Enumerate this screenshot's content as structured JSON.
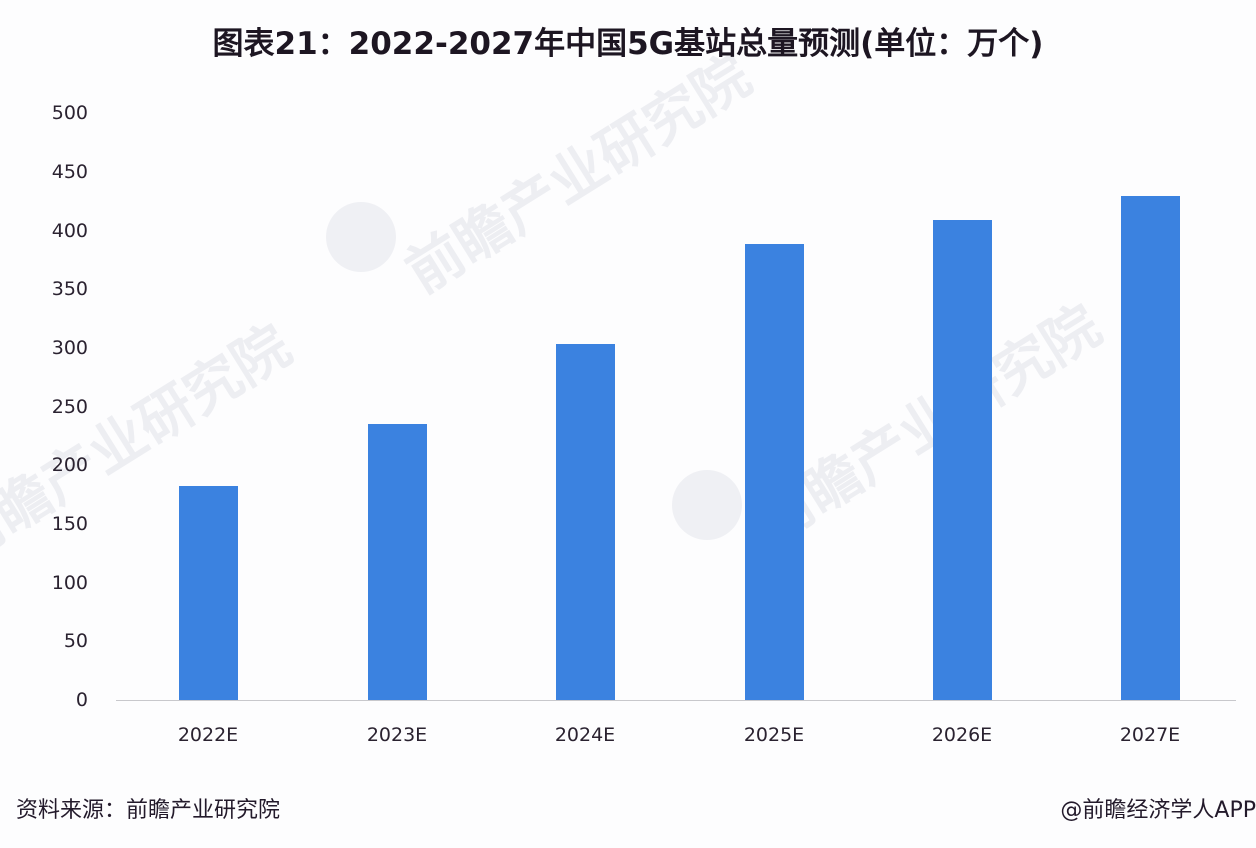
{
  "chart_data": {
    "type": "bar",
    "title": "图表21：2022-2027年中国5G基站总量预测(单位：万个)",
    "xlabel": "",
    "ylabel": "",
    "unit": "万个",
    "categories": [
      "2022E",
      "2023E",
      "2024E",
      "2025E",
      "2026E",
      "2027E"
    ],
    "values": [
      182,
      235,
      303,
      388,
      409,
      429
    ],
    "ylim": [
      0,
      500
    ],
    "yticks": [
      0,
      50,
      100,
      150,
      200,
      250,
      300,
      350,
      400,
      450,
      500
    ],
    "grid": false,
    "legend": null,
    "bar_color": "#3b82e0"
  },
  "header": {
    "title": "图表21：2022-2027年中国5G基站总量预测(单位：万个)"
  },
  "axis": {
    "y_labels": [
      "500",
      "450",
      "400",
      "350",
      "300",
      "250",
      "200",
      "150",
      "100",
      "50",
      "0"
    ],
    "x_labels": [
      "2022E",
      "2023E",
      "2024E",
      "2025E",
      "2026E",
      "2027E"
    ]
  },
  "footer": {
    "source": "资料来源：前瞻产业研究院",
    "credit": "@前瞻经济学人APP"
  },
  "watermark": {
    "text": "前瞻产业研究院"
  }
}
